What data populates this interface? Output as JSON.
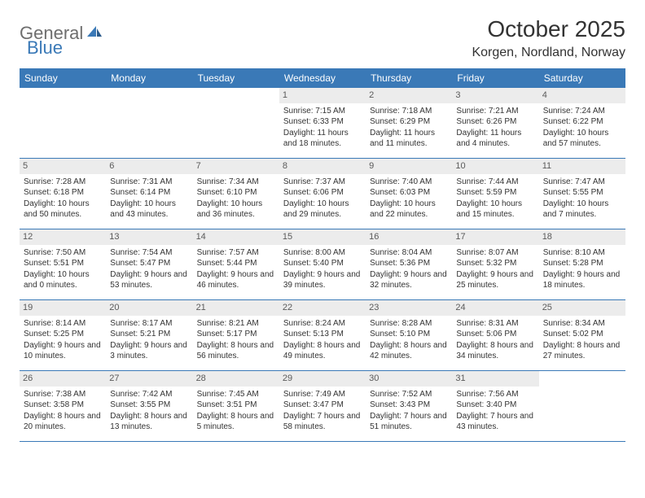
{
  "logo": {
    "text1": "General",
    "text2": "Blue"
  },
  "title": "October 2025",
  "location": "Korgen, Nordland, Norway",
  "weekdays": [
    "Sunday",
    "Monday",
    "Tuesday",
    "Wednesday",
    "Thursday",
    "Friday",
    "Saturday"
  ],
  "colors": {
    "header_bg": "#3a79b7",
    "header_text": "#ffffff",
    "daynum_bg": "#ececec",
    "daynum_text": "#5a5a5a",
    "body_text": "#333333",
    "rule": "#3a79b7",
    "logo_gray": "#6e6e6e",
    "logo_blue": "#3a79b7",
    "page_bg": "#ffffff"
  },
  "typography": {
    "title_fontsize": 28,
    "location_fontsize": 16,
    "weekday_fontsize": 12,
    "daynum_fontsize": 11,
    "body_fontsize": 10,
    "logo_fontsize": 22
  },
  "layout": {
    "columns": 7,
    "rows": 5,
    "first_day_column": 3
  },
  "days": [
    {
      "n": "1",
      "sunrise": "7:15 AM",
      "sunset": "6:33 PM",
      "daylight": "11 hours and 18 minutes."
    },
    {
      "n": "2",
      "sunrise": "7:18 AM",
      "sunset": "6:29 PM",
      "daylight": "11 hours and 11 minutes."
    },
    {
      "n": "3",
      "sunrise": "7:21 AM",
      "sunset": "6:26 PM",
      "daylight": "11 hours and 4 minutes."
    },
    {
      "n": "4",
      "sunrise": "7:24 AM",
      "sunset": "6:22 PM",
      "daylight": "10 hours and 57 minutes."
    },
    {
      "n": "5",
      "sunrise": "7:28 AM",
      "sunset": "6:18 PM",
      "daylight": "10 hours and 50 minutes."
    },
    {
      "n": "6",
      "sunrise": "7:31 AM",
      "sunset": "6:14 PM",
      "daylight": "10 hours and 43 minutes."
    },
    {
      "n": "7",
      "sunrise": "7:34 AM",
      "sunset": "6:10 PM",
      "daylight": "10 hours and 36 minutes."
    },
    {
      "n": "8",
      "sunrise": "7:37 AM",
      "sunset": "6:06 PM",
      "daylight": "10 hours and 29 minutes."
    },
    {
      "n": "9",
      "sunrise": "7:40 AM",
      "sunset": "6:03 PM",
      "daylight": "10 hours and 22 minutes."
    },
    {
      "n": "10",
      "sunrise": "7:44 AM",
      "sunset": "5:59 PM",
      "daylight": "10 hours and 15 minutes."
    },
    {
      "n": "11",
      "sunrise": "7:47 AM",
      "sunset": "5:55 PM",
      "daylight": "10 hours and 7 minutes."
    },
    {
      "n": "12",
      "sunrise": "7:50 AM",
      "sunset": "5:51 PM",
      "daylight": "10 hours and 0 minutes."
    },
    {
      "n": "13",
      "sunrise": "7:54 AM",
      "sunset": "5:47 PM",
      "daylight": "9 hours and 53 minutes."
    },
    {
      "n": "14",
      "sunrise": "7:57 AM",
      "sunset": "5:44 PM",
      "daylight": "9 hours and 46 minutes."
    },
    {
      "n": "15",
      "sunrise": "8:00 AM",
      "sunset": "5:40 PM",
      "daylight": "9 hours and 39 minutes."
    },
    {
      "n": "16",
      "sunrise": "8:04 AM",
      "sunset": "5:36 PM",
      "daylight": "9 hours and 32 minutes."
    },
    {
      "n": "17",
      "sunrise": "8:07 AM",
      "sunset": "5:32 PM",
      "daylight": "9 hours and 25 minutes."
    },
    {
      "n": "18",
      "sunrise": "8:10 AM",
      "sunset": "5:28 PM",
      "daylight": "9 hours and 18 minutes."
    },
    {
      "n": "19",
      "sunrise": "8:14 AM",
      "sunset": "5:25 PM",
      "daylight": "9 hours and 10 minutes."
    },
    {
      "n": "20",
      "sunrise": "8:17 AM",
      "sunset": "5:21 PM",
      "daylight": "9 hours and 3 minutes."
    },
    {
      "n": "21",
      "sunrise": "8:21 AM",
      "sunset": "5:17 PM",
      "daylight": "8 hours and 56 minutes."
    },
    {
      "n": "22",
      "sunrise": "8:24 AM",
      "sunset": "5:13 PM",
      "daylight": "8 hours and 49 minutes."
    },
    {
      "n": "23",
      "sunrise": "8:28 AM",
      "sunset": "5:10 PM",
      "daylight": "8 hours and 42 minutes."
    },
    {
      "n": "24",
      "sunrise": "8:31 AM",
      "sunset": "5:06 PM",
      "daylight": "8 hours and 34 minutes."
    },
    {
      "n": "25",
      "sunrise": "8:34 AM",
      "sunset": "5:02 PM",
      "daylight": "8 hours and 27 minutes."
    },
    {
      "n": "26",
      "sunrise": "7:38 AM",
      "sunset": "3:58 PM",
      "daylight": "8 hours and 20 minutes."
    },
    {
      "n": "27",
      "sunrise": "7:42 AM",
      "sunset": "3:55 PM",
      "daylight": "8 hours and 13 minutes."
    },
    {
      "n": "28",
      "sunrise": "7:45 AM",
      "sunset": "3:51 PM",
      "daylight": "8 hours and 5 minutes."
    },
    {
      "n": "29",
      "sunrise": "7:49 AM",
      "sunset": "3:47 PM",
      "daylight": "7 hours and 58 minutes."
    },
    {
      "n": "30",
      "sunrise": "7:52 AM",
      "sunset": "3:43 PM",
      "daylight": "7 hours and 51 minutes."
    },
    {
      "n": "31",
      "sunrise": "7:56 AM",
      "sunset": "3:40 PM",
      "daylight": "7 hours and 43 minutes."
    }
  ],
  "labels": {
    "sunrise": "Sunrise:",
    "sunset": "Sunset:",
    "daylight": "Daylight:"
  }
}
